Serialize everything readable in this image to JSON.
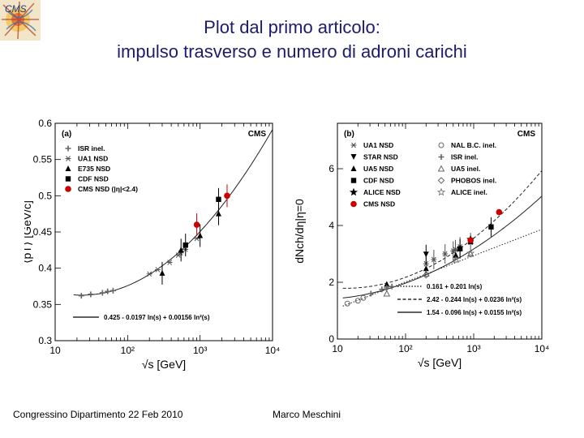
{
  "slide": {
    "title_line1": "Plot dal primo articolo:",
    "title_line2": "impulso trasverso e numero di adroni carichi",
    "footer_left": "Congressino Dipartimento 22 Feb 2010",
    "footer_center": "Marco Meschini",
    "logo_text": "CMS"
  },
  "chart_data": [
    {
      "type": "scatter",
      "panel_label": "(a)",
      "experiment_label": "CMS",
      "xlabel": "√s [GeV]",
      "ylabel": "⟨pT⟩ [GeV/c]",
      "xscale": "log",
      "xlim": [
        10,
        10000
      ],
      "ylim": [
        0.3,
        0.6
      ],
      "xticks": [
        10,
        100,
        1000,
        10000
      ],
      "xtick_labels": [
        "10",
        "10²",
        "10³",
        "10⁴"
      ],
      "yticks": [
        0.3,
        0.35,
        0.4,
        0.45,
        0.5,
        0.55,
        0.6
      ],
      "ytick_labels": [
        "0.3",
        "0.35",
        "0.4",
        "0.45",
        "0.5",
        "0.55",
        "0.6"
      ],
      "legend_position": "top-left",
      "series": [
        {
          "name": "ISR inel.",
          "marker": "open-cross",
          "color": "#666666",
          "points": [
            [
              23,
              0.362
            ],
            [
              31,
              0.364
            ],
            [
              45,
              0.366
            ],
            [
              53,
              0.368
            ],
            [
              63,
              0.369
            ]
          ]
        },
        {
          "name": "UA1 NSD",
          "marker": "asterisk",
          "color": "#555555",
          "points": [
            [
              200,
              0.392
            ],
            [
              260,
              0.398
            ],
            [
              380,
              0.408
            ],
            [
              500,
              0.418
            ],
            [
              540,
              0.421
            ],
            [
              630,
              0.426
            ],
            [
              900,
              0.441
            ]
          ]
        },
        {
          "name": "E735 NSD",
          "marker": "triangle",
          "color": "#000000",
          "points": [
            [
              300,
              0.393
            ],
            [
              546,
              0.425
            ],
            [
              1000,
              0.445
            ],
            [
              1800,
              0.475
            ]
          ]
        },
        {
          "name": "CDF NSD",
          "marker": "square",
          "color": "#000000",
          "points": [
            [
              630,
              0.432
            ],
            [
              1800,
              0.495
            ]
          ]
        },
        {
          "name": "CMS NSD (|η|<2.4)",
          "marker": "circle",
          "color": "#cc0000",
          "points": [
            [
              900,
              0.46
            ],
            [
              2360,
              0.5
            ]
          ]
        }
      ],
      "fit": {
        "label": "0.425 - 0.0197 ln(s) + 0.00156 ln²(s)",
        "a": 0.425,
        "b": -0.0197,
        "c": 0.00156
      }
    },
    {
      "type": "scatter",
      "panel_label": "(b)",
      "experiment_label": "CMS",
      "xlabel": "√s [GeV]",
      "ylabel": "dNch/dη|η=0",
      "xscale": "log",
      "xlim": [
        10,
        10000
      ],
      "ylim": [
        0,
        7.6
      ],
      "xticks": [
        10,
        100,
        1000,
        10000
      ],
      "xtick_labels": [
        "10",
        "10²",
        "10³",
        "10⁴"
      ],
      "yticks": [
        0,
        2,
        4,
        6
      ],
      "ytick_labels": [
        "0",
        "2",
        "4",
        "6"
      ],
      "legend_position": "top-left",
      "series": [
        {
          "name": "UA1 NSD",
          "marker": "asterisk",
          "color": "#555555",
          "points": [
            [
              200,
              2.65
            ],
            [
              260,
              2.8
            ],
            [
              380,
              3.0
            ],
            [
              500,
              3.1
            ],
            [
              540,
              3.15
            ],
            [
              630,
              3.25
            ],
            [
              900,
              3.4
            ]
          ]
        },
        {
          "name": "STAR NSD",
          "marker": "triangle-down",
          "color": "#000000",
          "points": [
            [
              200,
              2.98
            ]
          ]
        },
        {
          "name": "UA5 NSD",
          "marker": "triangle",
          "color": "#000000",
          "points": [
            [
              53,
              1.93
            ],
            [
              200,
              2.48
            ],
            [
              546,
              2.95
            ],
            [
              900,
              3.43
            ]
          ]
        },
        {
          "name": "CDF NSD",
          "marker": "square",
          "color": "#000000",
          "points": [
            [
              630,
              3.18
            ],
            [
              1800,
              3.95
            ]
          ]
        },
        {
          "name": "ALICE NSD",
          "marker": "star",
          "color": "#000000",
          "points": [
            [
              900,
              3.51
            ]
          ]
        },
        {
          "name": "CMS NSD",
          "marker": "circle",
          "color": "#cc0000",
          "points": [
            [
              900,
              3.48
            ],
            [
              2360,
              4.47
            ]
          ]
        },
        {
          "name": "NAL B.C. inel.",
          "marker": "open-circle",
          "color": "#666666",
          "points": [
            [
              14,
              1.25
            ],
            [
              20,
              1.35
            ],
            [
              24,
              1.45
            ]
          ]
        },
        {
          "name": "ISR inel.",
          "marker": "open-cross",
          "color": "#666666",
          "points": [
            [
              31,
              1.6
            ],
            [
              45,
              1.75
            ],
            [
              53,
              1.8
            ],
            [
              63,
              1.85
            ]
          ]
        },
        {
          "name": "UA5 inel.",
          "marker": "open-triangle",
          "color": "#666666",
          "points": [
            [
              53,
              1.6
            ],
            [
              200,
              2.3
            ],
            [
              546,
              2.8
            ],
            [
              900,
              3.0
            ]
          ]
        },
        {
          "name": "PHOBOS inel.",
          "marker": "open-diamond",
          "color": "#666666",
          "points": [
            [
              200,
              2.25
            ]
          ]
        },
        {
          "name": "ALICE inel.",
          "marker": "open-star",
          "color": "#666666",
          "points": [
            [
              900,
              3.02
            ]
          ]
        }
      ],
      "fits": [
        {
          "label": "0.161 + 0.201 ln(s)",
          "style": "dotted",
          "form": "quadratic",
          "a": 0.161,
          "b": 0.201,
          "c": 0
        },
        {
          "label": "2.42 - 0.244 ln(s) + 0.0236 ln²(s)",
          "style": "dashed",
          "form": "quadratic",
          "a": 2.42,
          "b": -0.244,
          "c": 0.0236
        },
        {
          "label": "1.54 - 0.096 ln(s) + 0.0155 ln²(s)",
          "style": "solid",
          "form": "quadratic",
          "a": 1.54,
          "b": -0.096,
          "c": 0.0155
        }
      ]
    }
  ]
}
